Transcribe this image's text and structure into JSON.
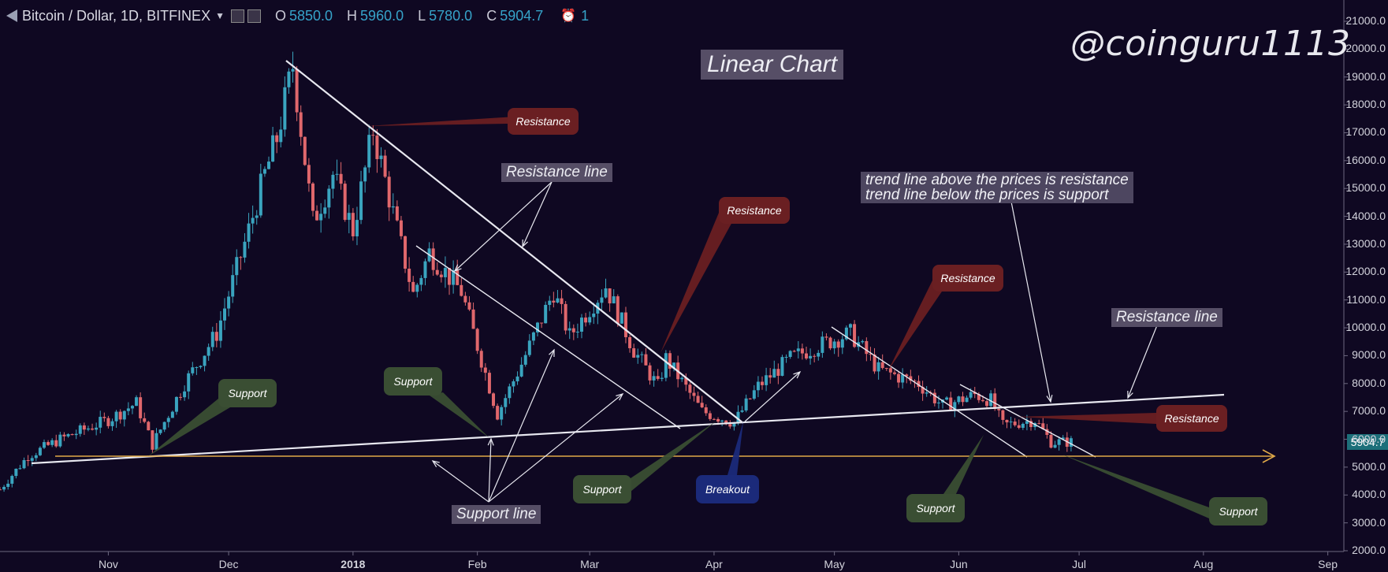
{
  "header": {
    "symbol": "Bitcoin / Dollar, 1D, BITFINEX",
    "o_label": "O",
    "o_value": "5850.0",
    "h_label": "H",
    "h_value": "5960.0",
    "l_label": "L",
    "l_value": "5780.0",
    "c_label": "C",
    "c_value": "5904.7",
    "alarm_icon": "alarm-clock-icon",
    "alarm_count": "1"
  },
  "watermark": "@coinguru1113",
  "title": "Linear Chart",
  "note_line1": "trend line above the prices is resistance",
  "note_line2": "trend line below the prices is support",
  "labels": {
    "resistance_line_left": "Resistance line",
    "resistance_line_right": "Resistance line",
    "support_line": "Support line",
    "resistance": "Resistance",
    "support": "Support",
    "breakout": "Breakout"
  },
  "last_price": "5904.7",
  "colors": {
    "background": "#0f0822",
    "candle_up": "#3aa4bf",
    "candle_down": "#e0676c",
    "trend_line": "#e8e8f0",
    "horizontal_support": "#e0a948",
    "resistance_badge": "#6a1f22",
    "support_badge": "#3a4e33",
    "breakout_badge": "#1b2a7a"
  },
  "chart_data": {
    "type": "candlestick",
    "series_name": "Bitcoin / Dollar, 1D, BITFINEX",
    "y_ticks": [
      "21000.0",
      "20000.0",
      "19000.0",
      "18000.0",
      "17000.0",
      "16000.0",
      "15000.0",
      "14000.0",
      "13000.0",
      "12000.0",
      "11000.0",
      "10000.0",
      "9000.0",
      "8000.0",
      "7000.0",
      "6000.0",
      "5000.0",
      "4000.0",
      "3000.0",
      "2000.0"
    ],
    "x_ticks": [
      {
        "label": "Nov",
        "bold": false
      },
      {
        "label": "Dec",
        "bold": false
      },
      {
        "label": "2018",
        "bold": true
      },
      {
        "label": "Feb",
        "bold": false
      },
      {
        "label": "Mar",
        "bold": false
      },
      {
        "label": "Apr",
        "bold": false
      },
      {
        "label": "May",
        "bold": false
      },
      {
        "label": "Jun",
        "bold": false
      },
      {
        "label": "Jul",
        "bold": false
      },
      {
        "label": "Aug",
        "bold": false
      },
      {
        "label": "Sep",
        "bold": false
      }
    ],
    "ylim": [
      2000,
      21000
    ],
    "xlim": [
      "2017-10-05",
      "2018-09-05"
    ],
    "price_path": [
      [
        "2017-10-05",
        4200
      ],
      [
        "2017-10-12",
        5400
      ],
      [
        "2017-10-20",
        6000
      ],
      [
        "2017-11-01",
        6700
      ],
      [
        "2017-11-08",
        7300
      ],
      [
        "2017-11-12",
        5800
      ],
      [
        "2017-11-20",
        8000
      ],
      [
        "2017-11-28",
        9800
      ],
      [
        "2017-12-06",
        13500
      ],
      [
        "2017-12-10",
        15500
      ],
      [
        "2017-12-13",
        16800
      ],
      [
        "2017-12-17",
        19400
      ],
      [
        "2017-12-22",
        13800
      ],
      [
        "2017-12-27",
        15500
      ],
      [
        "2018-01-01",
        13500
      ],
      [
        "2018-01-06",
        17100
      ],
      [
        "2018-01-12",
        13500
      ],
      [
        "2018-01-16",
        11200
      ],
      [
        "2018-01-20",
        12700
      ],
      [
        "2018-01-28",
        11300
      ],
      [
        "2018-02-06",
        6900
      ],
      [
        "2018-02-12",
        8700
      ],
      [
        "2018-02-20",
        11300
      ],
      [
        "2018-02-24",
        9700
      ],
      [
        "2018-03-05",
        11500
      ],
      [
        "2018-03-12",
        9200
      ],
      [
        "2018-03-18",
        7900
      ],
      [
        "2018-03-20",
        8900
      ],
      [
        "2018-03-29",
        7000
      ],
      [
        "2018-04-06",
        6600
      ],
      [
        "2018-04-12",
        7900
      ],
      [
        "2018-04-20",
        8900
      ],
      [
        "2018-04-26",
        9300
      ],
      [
        "2018-05-05",
        9800
      ],
      [
        "2018-05-12",
        8500
      ],
      [
        "2018-05-22",
        8000
      ],
      [
        "2018-05-28",
        7200
      ],
      [
        "2018-06-05",
        7600
      ],
      [
        "2018-06-09",
        7400
      ],
      [
        "2018-06-12",
        6500
      ],
      [
        "2018-06-20",
        6700
      ],
      [
        "2018-06-24",
        5900
      ],
      [
        "2018-06-29",
        5900
      ]
    ],
    "annotations": [
      {
        "text": "Resistance",
        "kind": "resistance"
      },
      {
        "text": "Resistance",
        "kind": "resistance"
      },
      {
        "text": "Resistance",
        "kind": "resistance"
      },
      {
        "text": "Resistance",
        "kind": "resistance"
      },
      {
        "text": "Support",
        "kind": "support"
      },
      {
        "text": "Support",
        "kind": "support"
      },
      {
        "text": "Support",
        "kind": "support"
      },
      {
        "text": "Support",
        "kind": "support"
      },
      {
        "text": "Support",
        "kind": "support"
      },
      {
        "text": "Breakout",
        "kind": "breakout"
      }
    ]
  }
}
